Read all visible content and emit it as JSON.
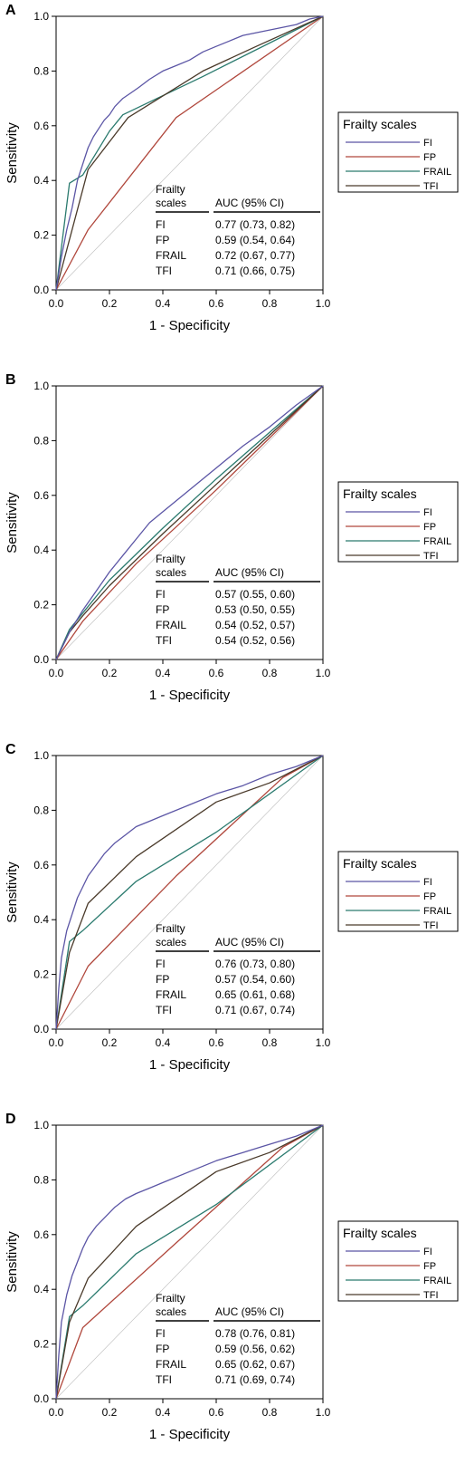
{
  "legend": {
    "title": "Frailty scales",
    "entries": [
      "FI",
      "FP",
      "FRAIL",
      "TFI"
    ],
    "placement": "right"
  },
  "colors": {
    "FI": "#5b55a5",
    "FP": "#b0473c",
    "FRAIL": "#2a7a6e",
    "TFI": "#4a3a2a"
  },
  "chart_data": [
    {
      "type": "line",
      "panel_label": "A",
      "xlabel": "1 - Specificity",
      "ylabel": "Sensitivity",
      "xlim": [
        0,
        1
      ],
      "ylim": [
        0,
        1
      ],
      "xticks": [
        "0.0",
        "0.2",
        "0.4",
        "0.6",
        "0.8",
        "1.0"
      ],
      "yticks": [
        "0.0",
        "0.2",
        "0.4",
        "0.6",
        "0.8",
        "1.0"
      ],
      "table_header": [
        "Frailty",
        "scales",
        "AUC (95% CI)"
      ],
      "table": [
        [
          "FI",
          "0.77 (0.73, 0.82)"
        ],
        [
          "FP",
          "0.59 (0.54, 0.64)"
        ],
        [
          "FRAIL",
          "0.72 (0.67, 0.77)"
        ],
        [
          "TFI",
          "0.71 (0.66, 0.75)"
        ]
      ],
      "series": [
        {
          "name": "FI",
          "points": [
            [
              0,
              0
            ],
            [
              0.02,
              0.12
            ],
            [
              0.04,
              0.22
            ],
            [
              0.06,
              0.3
            ],
            [
              0.08,
              0.4
            ],
            [
              0.1,
              0.46
            ],
            [
              0.12,
              0.52
            ],
            [
              0.14,
              0.56
            ],
            [
              0.16,
              0.59
            ],
            [
              0.18,
              0.62
            ],
            [
              0.2,
              0.64
            ],
            [
              0.22,
              0.67
            ],
            [
              0.25,
              0.7
            ],
            [
              0.28,
              0.72
            ],
            [
              0.31,
              0.74
            ],
            [
              0.35,
              0.77
            ],
            [
              0.4,
              0.8
            ],
            [
              0.45,
              0.82
            ],
            [
              0.5,
              0.84
            ],
            [
              0.55,
              0.87
            ],
            [
              0.6,
              0.89
            ],
            [
              0.65,
              0.91
            ],
            [
              0.7,
              0.93
            ],
            [
              0.75,
              0.94
            ],
            [
              0.8,
              0.95
            ],
            [
              0.85,
              0.96
            ],
            [
              0.9,
              0.97
            ],
            [
              0.95,
              0.99
            ],
            [
              1,
              1
            ]
          ]
        },
        {
          "name": "FP",
          "points": [
            [
              0,
              0
            ],
            [
              0.12,
              0.22
            ],
            [
              0.45,
              0.63
            ],
            [
              1,
              1
            ]
          ]
        },
        {
          "name": "FRAIL",
          "points": [
            [
              0,
              0
            ],
            [
              0.05,
              0.39
            ],
            [
              0.1,
              0.42
            ],
            [
              0.2,
              0.58
            ],
            [
              0.25,
              0.64
            ],
            [
              0.55,
              0.78
            ],
            [
              1,
              1
            ]
          ]
        },
        {
          "name": "TFI",
          "points": [
            [
              0,
              0
            ],
            [
              0.12,
              0.44
            ],
            [
              0.27,
              0.63
            ],
            [
              0.55,
              0.8
            ],
            [
              0.75,
              0.89
            ],
            [
              1,
              1
            ]
          ]
        }
      ]
    },
    {
      "type": "line",
      "panel_label": "B",
      "xlabel": "1 - Specificity",
      "ylabel": "Sensitivity",
      "xlim": [
        0,
        1
      ],
      "ylim": [
        0,
        1
      ],
      "xticks": [
        "0.0",
        "0.2",
        "0.4",
        "0.6",
        "0.8",
        "1.0"
      ],
      "yticks": [
        "0.0",
        "0.2",
        "0.4",
        "0.6",
        "0.8",
        "1.0"
      ],
      "table_header": [
        "Frailty",
        "scales",
        "AUC (95% CI)"
      ],
      "table": [
        [
          "FI",
          "0.57 (0.55, 0.60)"
        ],
        [
          "FP",
          "0.53 (0.50, 0.55)"
        ],
        [
          "FRAIL",
          "0.54 (0.52, 0.57)"
        ],
        [
          "TFI",
          "0.54 (0.52, 0.56)"
        ]
      ],
      "series": [
        {
          "name": "FI",
          "points": [
            [
              0,
              0
            ],
            [
              0.05,
              0.1
            ],
            [
              0.1,
              0.18
            ],
            [
              0.15,
              0.25
            ],
            [
              0.2,
              0.32
            ],
            [
              0.25,
              0.38
            ],
            [
              0.3,
              0.44
            ],
            [
              0.35,
              0.5
            ],
            [
              0.4,
              0.54
            ],
            [
              0.5,
              0.62
            ],
            [
              0.6,
              0.7
            ],
            [
              0.7,
              0.78
            ],
            [
              0.8,
              0.85
            ],
            [
              0.9,
              0.93
            ],
            [
              1,
              1
            ]
          ]
        },
        {
          "name": "FP",
          "points": [
            [
              0,
              0
            ],
            [
              0.1,
              0.14
            ],
            [
              0.3,
              0.35
            ],
            [
              0.6,
              0.62
            ],
            [
              1,
              1
            ]
          ]
        },
        {
          "name": "FRAIL",
          "points": [
            [
              0,
              0
            ],
            [
              0.05,
              0.11
            ],
            [
              0.1,
              0.17
            ],
            [
              0.2,
              0.29
            ],
            [
              0.4,
              0.48
            ],
            [
              0.6,
              0.66
            ],
            [
              0.8,
              0.83
            ],
            [
              1,
              1
            ]
          ]
        },
        {
          "name": "TFI",
          "points": [
            [
              0,
              0
            ],
            [
              0.05,
              0.1
            ],
            [
              0.1,
              0.16
            ],
            [
              0.2,
              0.27
            ],
            [
              0.4,
              0.46
            ],
            [
              0.6,
              0.64
            ],
            [
              0.8,
              0.82
            ],
            [
              1,
              1
            ]
          ]
        }
      ]
    },
    {
      "type": "line",
      "panel_label": "C",
      "xlabel": "1 - Specificity",
      "ylabel": "Sensitivity",
      "xlim": [
        0,
        1
      ],
      "ylim": [
        0,
        1
      ],
      "xticks": [
        "0.0",
        "0.2",
        "0.4",
        "0.6",
        "0.8",
        "1.0"
      ],
      "yticks": [
        "0.0",
        "0.2",
        "0.4",
        "0.6",
        "0.8",
        "1.0"
      ],
      "table_header": [
        "Frailty",
        "scales",
        "AUC (95% CI)"
      ],
      "table": [
        [
          "FI",
          "0.76 (0.73, 0.80)"
        ],
        [
          "FP",
          "0.57 (0.54, 0.60)"
        ],
        [
          "FRAIL",
          "0.65 (0.61, 0.68)"
        ],
        [
          "TFI",
          "0.71 (0.67, 0.74)"
        ]
      ],
      "series": [
        {
          "name": "FI",
          "points": [
            [
              0,
              0
            ],
            [
              0.01,
              0.15
            ],
            [
              0.02,
              0.26
            ],
            [
              0.04,
              0.36
            ],
            [
              0.06,
              0.42
            ],
            [
              0.08,
              0.48
            ],
            [
              0.1,
              0.52
            ],
            [
              0.12,
              0.56
            ],
            [
              0.15,
              0.6
            ],
            [
              0.18,
              0.64
            ],
            [
              0.22,
              0.68
            ],
            [
              0.26,
              0.71
            ],
            [
              0.3,
              0.74
            ],
            [
              0.35,
              0.76
            ],
            [
              0.4,
              0.78
            ],
            [
              0.5,
              0.82
            ],
            [
              0.6,
              0.86
            ],
            [
              0.7,
              0.89
            ],
            [
              0.8,
              0.93
            ],
            [
              0.9,
              0.96
            ],
            [
              1,
              1
            ]
          ]
        },
        {
          "name": "FP",
          "points": [
            [
              0,
              0
            ],
            [
              0.12,
              0.23
            ],
            [
              0.45,
              0.56
            ],
            [
              0.85,
              0.92
            ],
            [
              1,
              1
            ]
          ]
        },
        {
          "name": "FRAIL",
          "points": [
            [
              0,
              0
            ],
            [
              0.05,
              0.32
            ],
            [
              0.1,
              0.36
            ],
            [
              0.3,
              0.54
            ],
            [
              0.6,
              0.72
            ],
            [
              1,
              1
            ]
          ]
        },
        {
          "name": "TFI",
          "points": [
            [
              0,
              0
            ],
            [
              0.05,
              0.28
            ],
            [
              0.12,
              0.46
            ],
            [
              0.3,
              0.63
            ],
            [
              0.6,
              0.83
            ],
            [
              0.8,
              0.9
            ],
            [
              1,
              1
            ]
          ]
        }
      ]
    },
    {
      "type": "line",
      "panel_label": "D",
      "xlabel": "1 - Specificity",
      "ylabel": "Sensitivity",
      "xlim": [
        0,
        1
      ],
      "ylim": [
        0,
        1
      ],
      "xticks": [
        "0.0",
        "0.2",
        "0.4",
        "0.6",
        "0.8",
        "1.0"
      ],
      "yticks": [
        "0.0",
        "0.2",
        "0.4",
        "0.6",
        "0.8",
        "1.0"
      ],
      "table_header": [
        "Frailty",
        "scales",
        "AUC (95% CI)"
      ],
      "table": [
        [
          "FI",
          "0.78 (0.76, 0.81)"
        ],
        [
          "FP",
          "0.59 (0.56, 0.62)"
        ],
        [
          "FRAIL",
          "0.65 (0.62, 0.67)"
        ],
        [
          "TFI",
          "0.71 (0.69, 0.74)"
        ]
      ],
      "series": [
        {
          "name": "FI",
          "points": [
            [
              0,
              0
            ],
            [
              0.01,
              0.16
            ],
            [
              0.02,
              0.28
            ],
            [
              0.04,
              0.38
            ],
            [
              0.06,
              0.45
            ],
            [
              0.08,
              0.5
            ],
            [
              0.1,
              0.55
            ],
            [
              0.12,
              0.59
            ],
            [
              0.15,
              0.63
            ],
            [
              0.18,
              0.66
            ],
            [
              0.22,
              0.7
            ],
            [
              0.26,
              0.73
            ],
            [
              0.3,
              0.75
            ],
            [
              0.35,
              0.77
            ],
            [
              0.4,
              0.79
            ],
            [
              0.5,
              0.83
            ],
            [
              0.6,
              0.87
            ],
            [
              0.7,
              0.9
            ],
            [
              0.8,
              0.93
            ],
            [
              0.9,
              0.96
            ],
            [
              1,
              1
            ]
          ]
        },
        {
          "name": "FP",
          "points": [
            [
              0,
              0
            ],
            [
              0.1,
              0.26
            ],
            [
              0.45,
              0.57
            ],
            [
              0.85,
              0.92
            ],
            [
              1,
              1
            ]
          ]
        },
        {
          "name": "FRAIL",
          "points": [
            [
              0,
              0
            ],
            [
              0.05,
              0.3
            ],
            [
              0.1,
              0.34
            ],
            [
              0.3,
              0.53
            ],
            [
              0.6,
              0.71
            ],
            [
              1,
              1
            ]
          ]
        },
        {
          "name": "TFI",
          "points": [
            [
              0,
              0
            ],
            [
              0.05,
              0.28
            ],
            [
              0.12,
              0.44
            ],
            [
              0.3,
              0.63
            ],
            [
              0.6,
              0.83
            ],
            [
              0.8,
              0.9
            ],
            [
              1,
              1
            ]
          ]
        }
      ]
    }
  ]
}
